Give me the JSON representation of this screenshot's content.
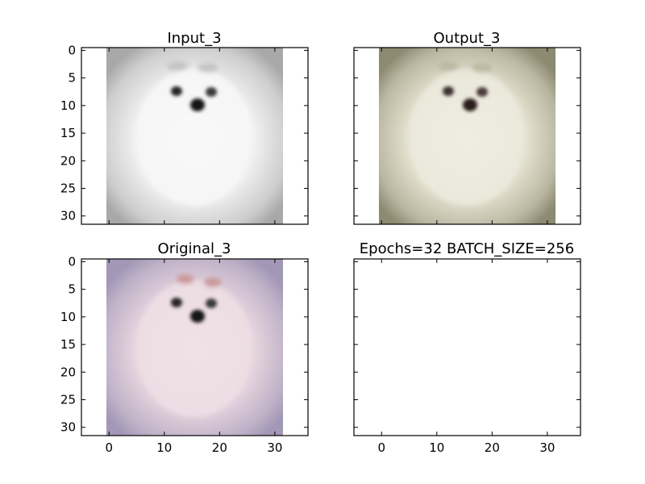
{
  "figure": {
    "background": "#ffffff",
    "subplots": [
      {
        "title": "Input_3",
        "kind": "image",
        "palette": "grayscale",
        "show_x_ticklabels": false,
        "show_y_ticklabels": true
      },
      {
        "title": "Output_3",
        "kind": "image",
        "palette": "reconstruction",
        "show_x_ticklabels": false,
        "show_y_ticklabels": false
      },
      {
        "title": "Original_3",
        "kind": "image",
        "palette": "original",
        "show_x_ticklabels": true,
        "show_y_ticklabels": true
      },
      {
        "title": "Epochs=32 BATCH_SIZE=256",
        "kind": "empty",
        "show_x_ticklabels": true,
        "show_y_ticklabels": false
      }
    ]
  },
  "chart_data": {
    "type": "heatmap",
    "image_size": [
      32,
      32
    ],
    "xlim": [
      -5,
      36
    ],
    "ylim": [
      31.5,
      -0.5
    ],
    "x_ticks": [
      0,
      10,
      20,
      30
    ],
    "y_ticks": [
      0,
      5,
      10,
      15,
      20,
      25,
      30
    ],
    "grid": false,
    "colors": {
      "grayscale_bg": "#a6a6a6",
      "grayscale_fur": "#f5f5f5",
      "reconstruction_bg": "#8c8a74",
      "reconstruction_fur": "#e8e6d8",
      "original_bg": "#a49ab8",
      "original_fur": "#eedee4",
      "eyes_nose": "#1a1a1a",
      "bow": "#c9a0a0"
    }
  }
}
